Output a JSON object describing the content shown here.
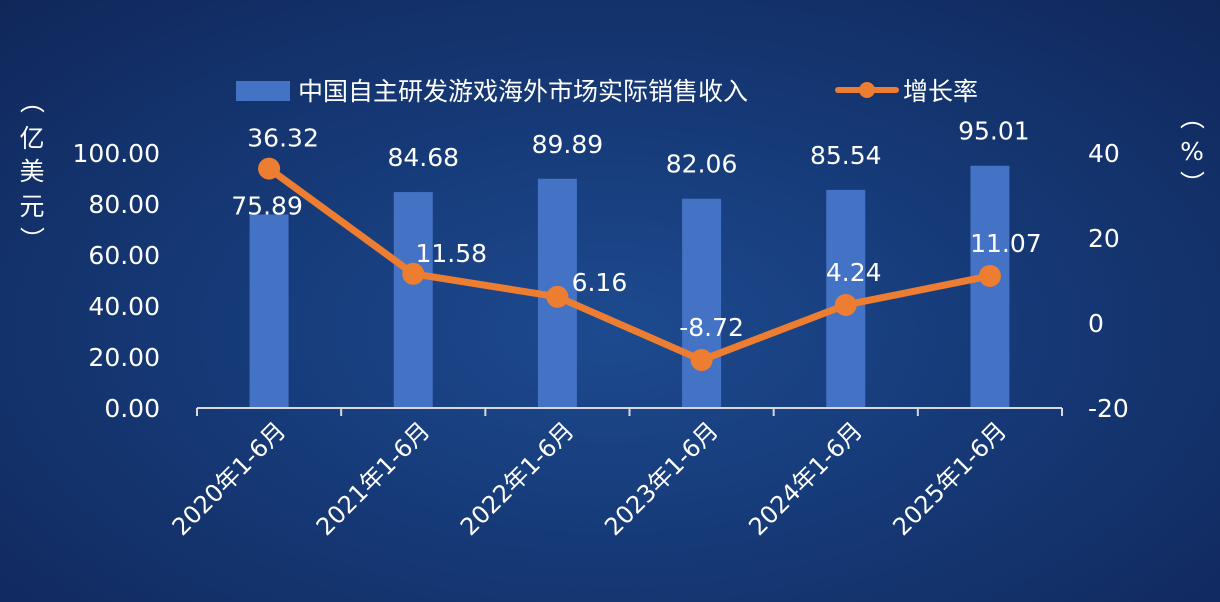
{
  "chart_data": {
    "type": "bar",
    "categories": [
      "2020年1-6月",
      "2021年1-6月",
      "2022年1-6月",
      "2023年1-6月",
      "2024年1-6月",
      "2025年1-6月"
    ],
    "series": [
      {
        "name": "中国自主研发游戏海外市场实际销售收入",
        "type": "bar",
        "axis": "left",
        "values": [
          75.89,
          84.68,
          89.89,
          82.06,
          85.54,
          95.01
        ],
        "labels": [
          "75.89",
          "84.68",
          "89.89",
          "82.06",
          "85.54",
          "95.01"
        ],
        "color": "#4472c4"
      },
      {
        "name": "增长率",
        "type": "line",
        "axis": "right",
        "values": [
          36.32,
          11.58,
          6.16,
          -8.72,
          4.24,
          11.07
        ],
        "labels": [
          "36.32",
          "11.58",
          "6.16",
          "-8.72",
          "4.24",
          "11.07"
        ],
        "color": "#ed7d31"
      }
    ],
    "y_left": {
      "label_chars": [
        "（",
        "亿",
        "美",
        "元",
        "）"
      ],
      "range": [
        0,
        100
      ],
      "ticks": [
        "0.00",
        "20.00",
        "40.00",
        "60.00",
        "80.00",
        "100.00"
      ]
    },
    "y_right": {
      "label_chars": [
        "（",
        "%",
        "）"
      ],
      "range": [
        -20,
        40
      ],
      "ticks": [
        "-20",
        "0",
        "20",
        "40"
      ]
    },
    "legend_position": "top-center",
    "grid": false
  }
}
